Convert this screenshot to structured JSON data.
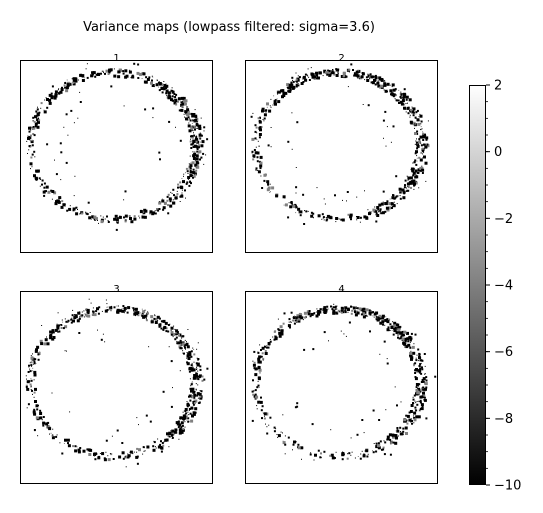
{
  "chart_data": {
    "type": "heatmap",
    "title": "Variance maps (lowpass filtered: sigma=3.6)",
    "colormap": "gray",
    "colorbar": {
      "range": [
        -10,
        2
      ],
      "ticks": [
        2,
        0,
        -2,
        -4,
        -6,
        -8,
        -10
      ],
      "tick_labels": [
        "2",
        "0",
        "−2",
        "−4",
        "−6",
        "−8",
        "−10"
      ],
      "minor_tick_step": 0.5
    },
    "panels": [
      {
        "title": "1",
        "ring_center": [
          0.48,
          0.44
        ],
        "ring_radius": [
          0.43,
          0.38
        ],
        "background_value": 2,
        "ring_value": -10,
        "seed": 11
      },
      {
        "title": "2",
        "ring_center": [
          0.48,
          0.44
        ],
        "ring_radius": [
          0.43,
          0.38
        ],
        "background_value": 2,
        "ring_value": -10,
        "seed": 23
      },
      {
        "title": "3",
        "ring_center": [
          0.48,
          0.47
        ],
        "ring_radius": [
          0.43,
          0.38
        ],
        "background_value": 2,
        "ring_value": -10,
        "seed": 37
      },
      {
        "title": "4",
        "ring_center": [
          0.48,
          0.47
        ],
        "ring_radius": [
          0.43,
          0.38
        ],
        "background_value": 2,
        "ring_value": -10,
        "seed": 51
      }
    ],
    "grid": false
  }
}
